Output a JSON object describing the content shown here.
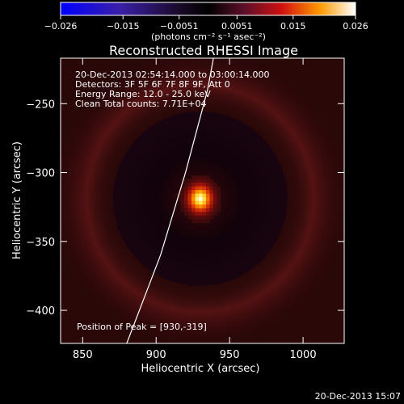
{
  "chart_data": {
    "type": "heatmap",
    "title": "Reconstructed RHESSI Image",
    "xlabel": "Heliocentric X (arcsec)",
    "ylabel": "Heliocentric Y (arcsec)",
    "xlim": [
      835,
      1028
    ],
    "ylim": [
      -424,
      -217
    ],
    "x_ticks": [
      850,
      900,
      950,
      1000
    ],
    "y_ticks": [
      -250,
      -300,
      -350,
      -400
    ],
    "colorbar": {
      "range": [
        -0.026,
        0.026
      ],
      "ticks": [
        "-0.026",
        "-0.015",
        "-0.0051",
        "0.0051",
        "0.015",
        "0.026"
      ],
      "unit_label": "(photons cm⁻² s⁻¹ asec⁻²)"
    },
    "annotations": [
      "20-Dec-2013 02:54:14.000 to 03:00:14.000",
      "Detectors: 3F 5F 6F 7F 8F 9F, Att 0",
      "Energy Range: 12.0 - 25.0 keV",
      "Clean    Total counts: 7.71E+04"
    ],
    "peak_label": "Position of Peak = [930,-319]",
    "peak": {
      "x": 930,
      "y": -319,
      "value": 0.026
    },
    "limb_curve": [
      [
        880,
        -424
      ],
      [
        903,
        -360
      ],
      [
        920,
        -300
      ],
      [
        935,
        -240
      ],
      [
        939,
        -217
      ]
    ],
    "timestamp": "20-Dec-2013 15:07"
  }
}
